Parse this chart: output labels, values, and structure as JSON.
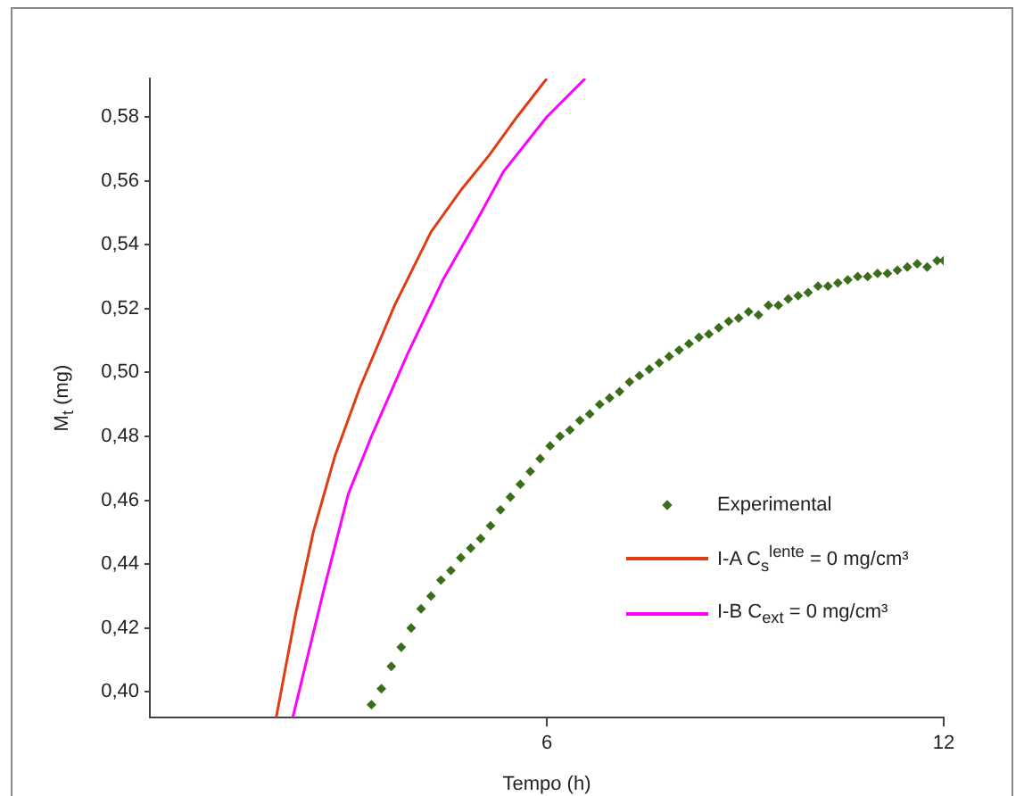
{
  "chart_data": {
    "type": "scatter",
    "xlabel": "Tempo (h)",
    "ylabel": "M$_{t}$  (mg)",
    "xlim": [
      0,
      12
    ],
    "ylim": [
      0.392,
      0.592
    ],
    "xticks": [
      6,
      12
    ],
    "yticks": [
      {
        "value": 0.4,
        "label": "0,40"
      },
      {
        "value": 0.42,
        "label": "0,42"
      },
      {
        "value": 0.44,
        "label": "0,44"
      },
      {
        "value": 0.46,
        "label": "0,46"
      },
      {
        "value": 0.48,
        "label": "0,48"
      },
      {
        "value": 0.5,
        "label": "0,50"
      },
      {
        "value": 0.52,
        "label": "0,52"
      },
      {
        "value": 0.54,
        "label": "0,54"
      },
      {
        "value": 0.56,
        "label": "0,56"
      },
      {
        "value": 0.58,
        "label": "0,58"
      }
    ],
    "legend": "right",
    "series": [
      {
        "name": "Experimental",
        "marker": "diamond",
        "color": "#3a6e1a",
        "x": [
          3.35,
          3.5,
          3.65,
          3.8,
          3.95,
          4.1,
          4.25,
          4.4,
          4.55,
          4.7,
          4.85,
          5.0,
          5.15,
          5.3,
          5.45,
          5.6,
          5.75,
          5.9,
          6.05,
          6.2,
          6.35,
          6.5,
          6.65,
          6.8,
          6.95,
          7.1,
          7.25,
          7.4,
          7.55,
          7.7,
          7.85,
          8.0,
          8.15,
          8.3,
          8.45,
          8.6,
          8.75,
          8.9,
          9.05,
          9.2,
          9.35,
          9.5,
          9.65,
          9.8,
          9.95,
          10.1,
          10.25,
          10.4,
          10.55,
          10.7,
          10.85,
          11.0,
          11.15,
          11.3,
          11.45,
          11.6,
          11.75,
          11.9,
          12.0
        ],
        "values": [
          0.396,
          0.401,
          0.408,
          0.414,
          0.42,
          0.426,
          0.43,
          0.435,
          0.438,
          0.442,
          0.445,
          0.448,
          0.452,
          0.457,
          0.461,
          0.465,
          0.469,
          0.473,
          0.477,
          0.48,
          0.482,
          0.485,
          0.487,
          0.49,
          0.492,
          0.494,
          0.497,
          0.499,
          0.501,
          0.503,
          0.505,
          0.507,
          0.509,
          0.511,
          0.512,
          0.514,
          0.516,
          0.517,
          0.519,
          0.518,
          0.521,
          0.521,
          0.523,
          0.524,
          0.525,
          0.527,
          0.527,
          0.528,
          0.529,
          0.53,
          0.53,
          0.531,
          0.531,
          0.532,
          0.533,
          0.534,
          0.533,
          0.535,
          0.535
        ]
      },
      {
        "name": "I-A  C$_{s}$$^{lente}$ = 0 mg/cm³",
        "type": "line",
        "marker": "none",
        "color": "#e03c14",
        "x": [
          1.91,
          2.2,
          2.47,
          2.8,
          3.17,
          3.7,
          4.25,
          4.7,
          5.13,
          5.55,
          6.0
        ],
        "values": [
          0.392,
          0.424,
          0.45,
          0.474,
          0.495,
          0.521,
          0.544,
          0.557,
          0.568,
          0.58,
          0.592
        ]
      },
      {
        "name": "I-B  C$_{ext}$ = 0 mg/cm³",
        "type": "line",
        "marker": "none",
        "color": "#ff00ff",
        "x": [
          2.16,
          2.63,
          3.0,
          3.35,
          3.9,
          4.43,
          4.9,
          5.35,
          6.0,
          6.58
        ],
        "values": [
          0.392,
          0.432,
          0.462,
          0.48,
          0.506,
          0.529,
          0.546,
          0.563,
          0.58,
          0.592
        ]
      }
    ]
  }
}
